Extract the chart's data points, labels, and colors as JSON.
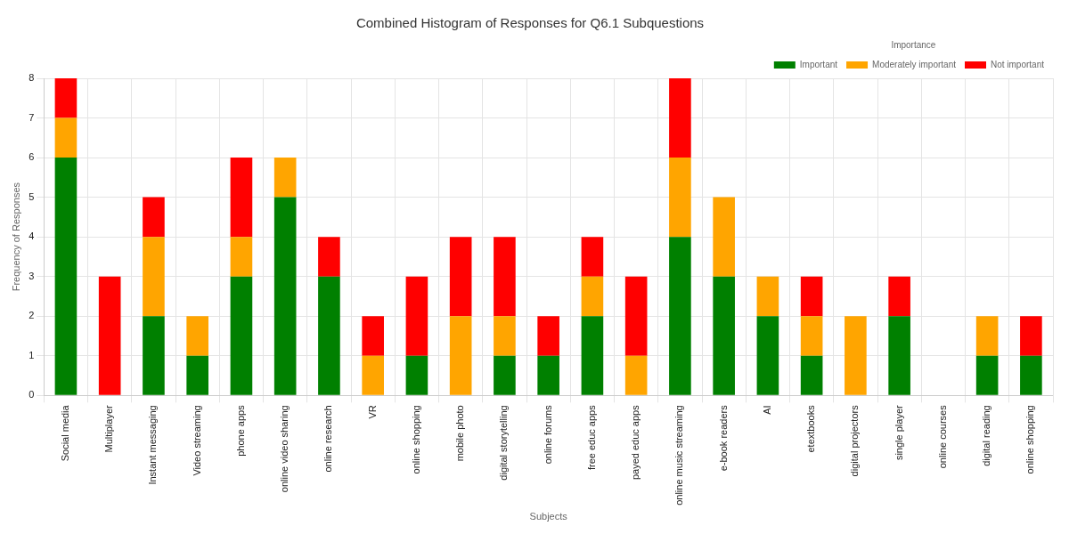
{
  "chart_data": {
    "type": "bar",
    "title": "Combined Histogram of Responses for Q6.1 Subquestions",
    "xlabel": "Subjects",
    "ylabel": "Frequency of Responses",
    "legend_title": "Importance",
    "categories": [
      "Social media",
      "Multiplayer",
      "Instant messaging",
      "Video streaming",
      "phone apps",
      "online video sharing",
      "online research",
      "VR",
      "online shopping",
      "mobile photo",
      "digital storytelling",
      "online forums",
      "free educ apps",
      "payed educ apps",
      "online music streaming",
      "e-book readers",
      "AI",
      "etextbooks",
      "digital projectors",
      "single player",
      "online courses",
      "digital reading",
      "online shopping"
    ],
    "series": [
      {
        "name": "Important",
        "color": "#008000",
        "values": [
          6,
          0,
          2,
          1,
          3,
          5,
          3,
          0,
          1,
          0,
          1,
          1,
          2,
          0,
          4,
          3,
          2,
          1,
          0,
          2,
          0,
          1,
          1
        ]
      },
      {
        "name": "Moderately important",
        "color": "#ffa500",
        "values": [
          1,
          0,
          2,
          1,
          1,
          1,
          0,
          1,
          0,
          2,
          1,
          0,
          1,
          1,
          2,
          2,
          1,
          1,
          2,
          0,
          0,
          1,
          0
        ]
      },
      {
        "name": "Not important",
        "color": "#ff0000",
        "values": [
          1,
          3,
          1,
          0,
          2,
          0,
          1,
          1,
          2,
          2,
          2,
          1,
          1,
          2,
          2,
          0,
          0,
          1,
          0,
          1,
          0,
          0,
          1
        ]
      }
    ],
    "stacked": true,
    "ylim": [
      0,
      8
    ],
    "yticks": [
      0,
      1,
      2,
      3,
      4,
      5,
      6,
      7,
      8
    ],
    "grid": true,
    "legend": "top right"
  }
}
